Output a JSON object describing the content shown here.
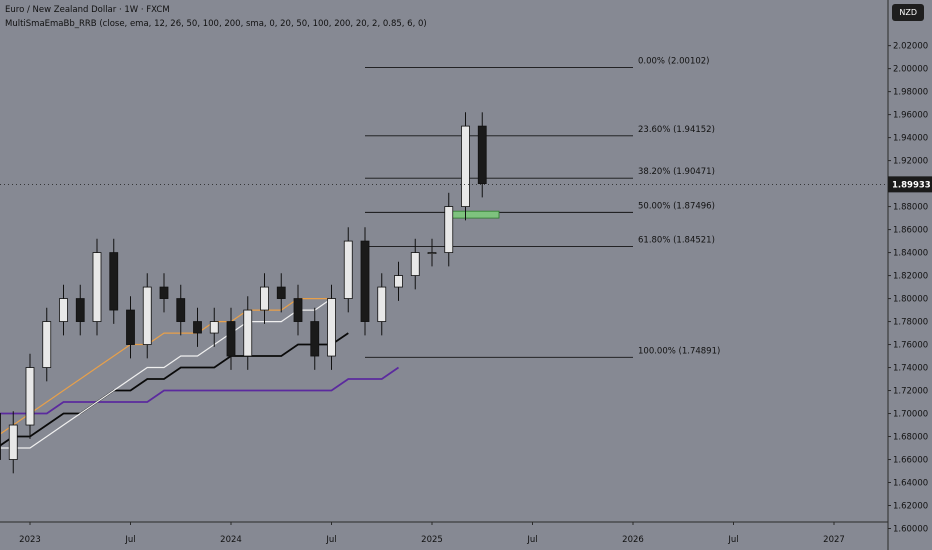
{
  "header": {
    "title": "Euro / New Zealand Dollar · 1W · FXCM",
    "indicator": "MultiSmaEmaBb_RRB (close, ema, 12, 26, 50, 100, 200, sma, 0, 20, 50, 100, 200, 20, 2, 0.85, 6, 0)"
  },
  "currency": "NZD",
  "last_price": "1.89933",
  "colors": {
    "background": "#868993",
    "candle_up": "#e8e8e8",
    "candle_down": "#1a1a1a",
    "ema_orange": "#e8a04a",
    "ema_white": "#f0f0f0",
    "sma_black": "#0a0a0a",
    "sma_purple": "#5b2a9e",
    "zone_green": "#7ec27e"
  },
  "chart_data": {
    "type": "candlestick",
    "title": "Euro / New Zealand Dollar · 1W · FXCM",
    "x_ticks": [
      "2023",
      "Jul",
      "2024",
      "Jul",
      "2025",
      "Jul",
      "2026",
      "Jul",
      "2027"
    ],
    "y_ticks": [
      "1.60000",
      "1.62000",
      "1.64000",
      "1.66000",
      "1.68000",
      "1.70000",
      "1.72000",
      "1.74000",
      "1.76000",
      "1.78000",
      "1.80000",
      "1.82000",
      "1.84000",
      "1.86000",
      "1.88000",
      "1.90000",
      "1.92000",
      "1.94000",
      "1.96000",
      "1.98000",
      "2.00000",
      "2.02000"
    ],
    "ylim": [
      1.6,
      2.02
    ],
    "fib_levels": [
      {
        "label": "0.00% (2.00102)",
        "value": 2.00102
      },
      {
        "label": "23.60% (1.94152)",
        "value": 1.94152
      },
      {
        "label": "38.20% (1.90471)",
        "value": 1.90471
      },
      {
        "label": "50.00% (1.87496)",
        "value": 1.87496
      },
      {
        "label": "61.80% (1.84521)",
        "value": 1.84521
      },
      {
        "label": "100.00% (1.74891)",
        "value": 1.74891
      }
    ],
    "fib_range": [
      "2024-09",
      "2026-01"
    ],
    "zone": {
      "x": [
        "2025-02",
        "2025-05"
      ],
      "y": [
        1.87,
        1.876
      ]
    },
    "candles_x": [
      "2022-10",
      "2022-11",
      "2022-12",
      "2023-01",
      "2023-02",
      "2023-03",
      "2023-04",
      "2023-05",
      "2023-06",
      "2023-07",
      "2023-08",
      "2023-09",
      "2023-10",
      "2023-11",
      "2023-12",
      "2024-01",
      "2024-02",
      "2024-03",
      "2024-04",
      "2024-05",
      "2024-06",
      "2024-07",
      "2024-08",
      "2024-09",
      "2024-10",
      "2024-11",
      "2024-12",
      "2025-01",
      "2025-02",
      "2025-03",
      "2025-04"
    ],
    "candles_close": [
      1.7,
      1.66,
      1.69,
      1.74,
      1.78,
      1.8,
      1.78,
      1.84,
      1.79,
      1.76,
      1.81,
      1.8,
      1.78,
      1.77,
      1.78,
      1.75,
      1.79,
      1.81,
      1.8,
      1.78,
      1.75,
      1.8,
      1.85,
      1.78,
      1.81,
      1.82,
      1.84,
      1.84,
      1.88,
      1.95,
      1.9
    ],
    "series": [
      {
        "values": [
          1.69,
          1.7,
          1.7,
          1.7,
          1.7,
          1.71,
          1.71,
          1.71,
          1.71,
          1.71,
          1.71,
          1.72,
          1.72,
          1.72,
          1.72,
          1.72,
          1.72,
          1.72,
          1.72,
          1.72,
          1.72,
          1.72,
          1.73,
          1.73,
          1.73,
          1.74
        ]
      },
      {
        "values": [
          1.67,
          1.67,
          1.68,
          1.68,
          1.69,
          1.7,
          1.7,
          1.71,
          1.72,
          1.72,
          1.73,
          1.73,
          1.74,
          1.74,
          1.74,
          1.75,
          1.75,
          1.75,
          1.75,
          1.76,
          1.76,
          1.76,
          1.77
        ]
      },
      {
        "values": [
          1.67,
          1.67,
          1.67,
          1.67,
          1.68,
          1.69,
          1.7,
          1.71,
          1.72,
          1.73,
          1.74,
          1.74,
          1.75,
          1.75,
          1.76,
          1.77,
          1.78,
          1.78,
          1.78,
          1.79,
          1.79,
          1.8
        ]
      },
      {
        "values": [
          1.67,
          1.68,
          1.69,
          1.7,
          1.71,
          1.72,
          1.73,
          1.74,
          1.75,
          1.76,
          1.76,
          1.77,
          1.77,
          1.77,
          1.78,
          1.78,
          1.79,
          1.79,
          1.79,
          1.8,
          1.8,
          1.8
        ]
      }
    ]
  }
}
